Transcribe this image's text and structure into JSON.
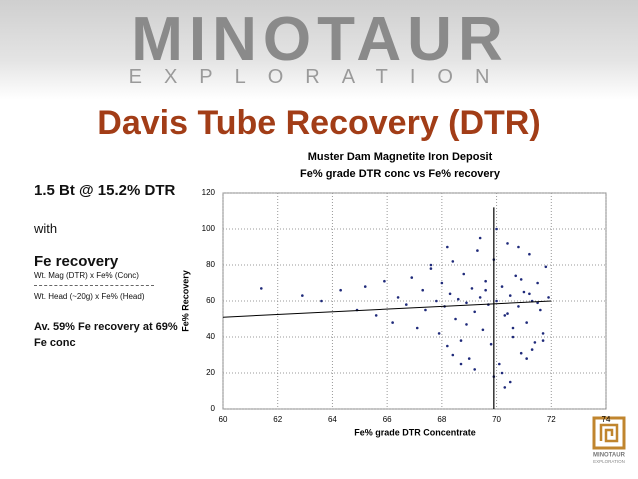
{
  "banner": {
    "company": "MINOTAUR",
    "sub": "EXPLORATION"
  },
  "slide": {
    "title": "Davis Tube Recovery (DTR)",
    "left": [
      "1.5 Bt @ 15.2% DTR",
      "with",
      "Fe recovery",
      "Wt. Mag (DTR) x Fe% (Conc)",
      "Wt. Head (~20g) x Fe% (Head)",
      "Av. 59% Fe recovery at 69% Fe conc"
    ]
  },
  "logo": {
    "name": "MINOTAUR",
    "sub": "EXPLORATION"
  },
  "chart_data": {
    "type": "scatter",
    "title": "Muster Dam Magnetite Iron Deposit",
    "subtitle": "Fe% grade DTR conc vs Fe% recovery",
    "xlabel": "Fe% grade DTR Concentrate",
    "ylabel": "Fe% Recovery",
    "xlim": [
      60,
      74
    ],
    "ylim": [
      0,
      120
    ],
    "xticks": [
      60,
      62,
      64,
      66,
      68,
      70,
      72,
      74
    ],
    "yticks": [
      0,
      20,
      40,
      60,
      80,
      100,
      120
    ],
    "grid": true,
    "series": [
      {
        "color": "#1f2a7a",
        "x": [
          61.4,
          62.9,
          63.6,
          64.3,
          64.9,
          65.2,
          65.6,
          65.9,
          66.2,
          66.4,
          66.7,
          66.9,
          67.1,
          67.3,
          67.4,
          67.6,
          67.8,
          67.9,
          68.0,
          68.1,
          68.2,
          68.3,
          68.4,
          68.5,
          68.6,
          68.7,
          68.8,
          68.9,
          69.0,
          69.1,
          69.2,
          69.3,
          69.4,
          69.5,
          69.6,
          69.7,
          69.8,
          69.9,
          70.0,
          70.1,
          70.2,
          70.3,
          70.4,
          70.5,
          70.6,
          70.7,
          70.8,
          70.9,
          71.0,
          71.1,
          71.2,
          71.3,
          71.4,
          71.5,
          71.6,
          71.7,
          71.8,
          71.9,
          70.2,
          70.5,
          69.4,
          70.8,
          71.3,
          68.7,
          69.9,
          70.6,
          71.1,
          68.2,
          69.2,
          70.3,
          71.7,
          67.6,
          68.9,
          70.0,
          70.9,
          71.5,
          69.6,
          70.4,
          68.4,
          71.2
        ],
        "values": [
          67,
          63,
          60,
          66,
          55,
          68,
          52,
          71,
          48,
          62,
          58,
          73,
          45,
          66,
          55,
          78,
          60,
          42,
          70,
          57,
          35,
          64,
          82,
          50,
          61,
          38,
          75,
          59,
          28,
          67,
          54,
          88,
          62,
          44,
          71,
          58,
          36,
          83,
          60,
          25,
          68,
          52,
          92,
          63,
          40,
          74,
          57,
          31,
          65,
          48,
          86,
          60,
          37,
          70,
          55,
          42,
          79,
          62,
          20,
          15,
          95,
          90,
          33,
          25,
          18,
          45,
          28,
          90,
          22,
          12,
          38,
          80,
          47,
          100,
          72,
          59,
          66,
          53,
          30,
          64
        ]
      }
    ],
    "trendline": {
      "x": [
        60,
        72
      ],
      "y": [
        51,
        60
      ],
      "color": "#000000"
    },
    "vline": {
      "x": 69.9,
      "y": [
        0,
        112
      ],
      "color": "#000000"
    }
  }
}
